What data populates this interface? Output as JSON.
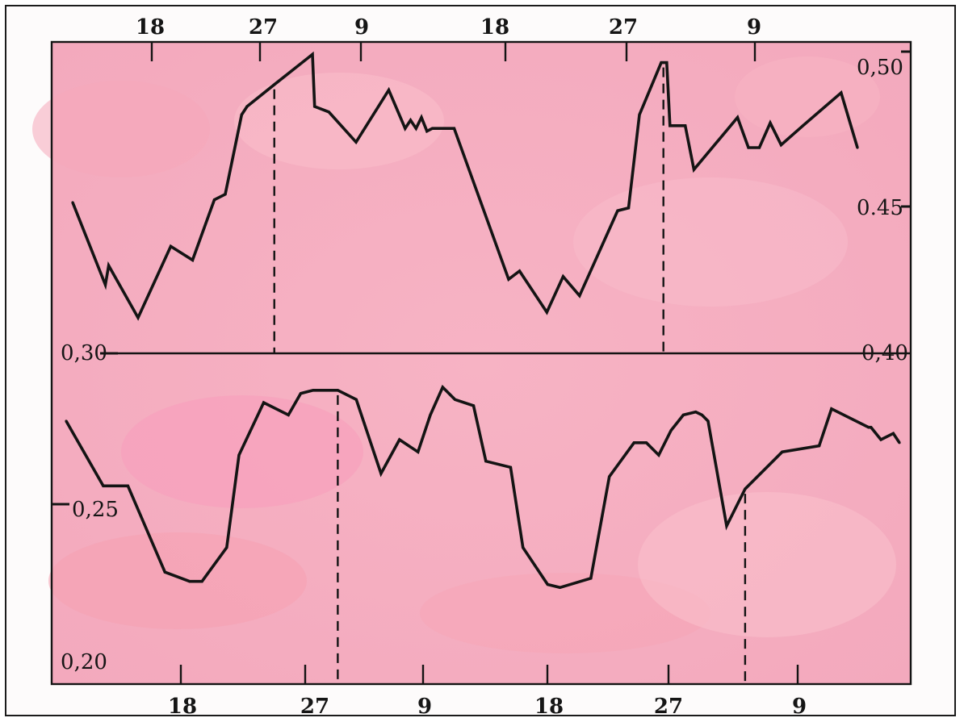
{
  "chart_data": [
    {
      "type": "line",
      "title": "",
      "xlabel": "",
      "ylabel": "",
      "x_tick_labels": [
        "18",
        "27",
        "9",
        "18",
        "27",
        "9"
      ],
      "y_tick_labels": [
        "0,50",
        "0.45",
        "0,40"
      ],
      "ylim": [
        0.4,
        0.51
      ],
      "grid": false,
      "marker_label": "27",
      "series": [
        {
          "x": [
            1,
            4,
            4.3,
            7,
            10,
            12,
            14,
            15,
            16.5,
            17,
            19.5,
            23,
            23.2,
            24.5,
            27,
            30,
            31.5,
            32,
            32.5,
            33,
            33.5,
            34,
            35,
            36,
            41,
            42,
            44.5,
            46,
            47.5,
            51,
            52,
            53,
            55,
            55.5,
            55.8,
            57,
            57.2,
            58,
            62,
            63,
            64,
            65,
            66,
            68,
            71.5,
            73
          ],
          "y": [
            0.455,
            0.425,
            0.432,
            0.413,
            0.439,
            0.434,
            0.456,
            0.458,
            0.487,
            0.49,
            0.498,
            0.509,
            0.49,
            0.488,
            0.477,
            0.496,
            0.482,
            0.485,
            0.482,
            0.486,
            0.481,
            0.482,
            0.482,
            0.482,
            0.427,
            0.43,
            0.415,
            0.428,
            0.421,
            0.452,
            0.453,
            0.487,
            0.506,
            0.506,
            0.483,
            0.483,
            0.483,
            0.467,
            0.486,
            0.475,
            0.475,
            0.484,
            0.476,
            0.483,
            0.495,
            0.475
          ]
        }
      ],
      "markers_x": [
        19.5,
        55.2
      ]
    },
    {
      "type": "line",
      "title": "",
      "xlabel": "",
      "ylabel": "",
      "x_tick_labels": [
        "18",
        "27",
        "9",
        "18",
        "27",
        "9"
      ],
      "y_tick_labels": [
        "0,30",
        "0,25",
        "0,20"
      ],
      "ylim": [
        0.2,
        0.3
      ],
      "grid": false,
      "marker_label": "27",
      "series": [
        {
          "x": [
            1,
            4,
            6,
            9,
            11,
            12,
            14,
            15,
            17,
            19,
            20,
            21,
            23,
            24.5,
            26.5,
            28,
            29.5,
            30.5,
            31.5,
            32.5,
            34,
            35,
            37,
            38,
            40,
            41,
            43.5,
            45,
            47,
            48,
            49,
            50,
            51,
            52,
            52.5,
            53,
            54.5,
            56,
            59,
            62,
            63,
            66,
            66.2,
            67,
            68,
            68.5
          ],
          "y": [
            0.278,
            0.257,
            0.257,
            0.229,
            0.226,
            0.226,
            0.237,
            0.267,
            0.284,
            0.28,
            0.287,
            0.288,
            0.288,
            0.285,
            0.261,
            0.272,
            0.268,
            0.28,
            0.289,
            0.285,
            0.283,
            0.265,
            0.263,
            0.237,
            0.225,
            0.224,
            0.227,
            0.26,
            0.271,
            0.271,
            0.267,
            0.275,
            0.28,
            0.281,
            0.28,
            0.278,
            0.244,
            0.256,
            0.268,
            0.27,
            0.282,
            0.276,
            0.276,
            0.272,
            0.274,
            0.271
          ]
        }
      ],
      "markers_x": [
        23,
        56
      ]
    }
  ]
}
